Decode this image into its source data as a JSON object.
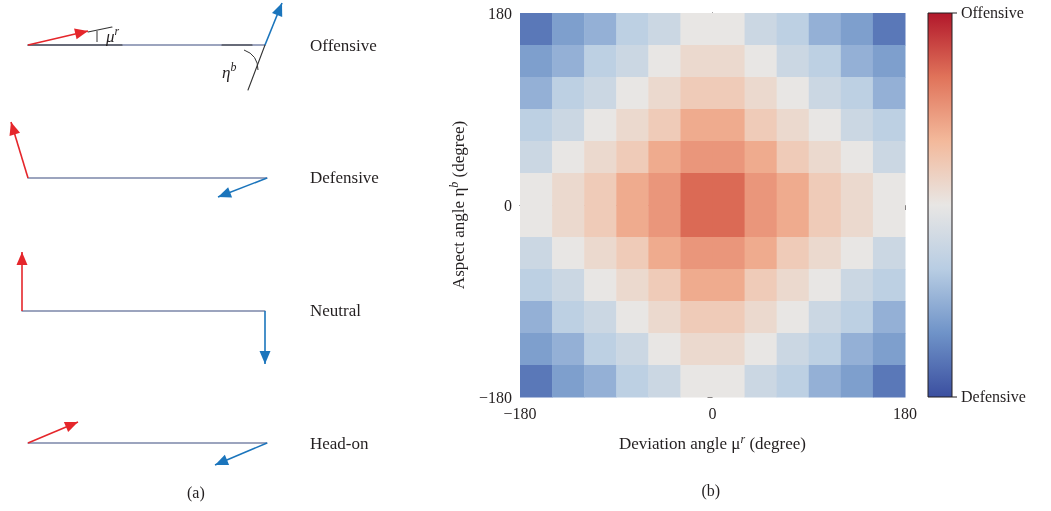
{
  "chart_data": [
    {
      "type": "other",
      "annotations": [
        "Offensive",
        "Defensive",
        "Neutral",
        "Head-on",
        "μ$^{r}$",
        "η$^{b}$",
        "(a)"
      ]
    },
    {
      "type": "heatmap",
      "xlabel": "Deviation angle μ$^{r}$ (degree)",
      "ylabel": "Aspect angle η$^{b}$ (degree)",
      "annotations": [
        "(b)"
      ],
      "x": [
        -165,
        -135,
        -105,
        -75,
        -45,
        -15,
        15,
        45,
        75,
        105,
        135,
        165
      ],
      "y": [
        165,
        135,
        105,
        75,
        45,
        15,
        -15,
        -45,
        -75,
        -105,
        -135,
        -165
      ],
      "xlim": [
        -180,
        180
      ],
      "xticks": [
        {
          "value": -180,
          "label": "−180"
        },
        0,
        180
      ],
      "ylim": [
        -180,
        180
      ],
      "yticks": [
        {
          "value": -180,
          "label": "−180"
        },
        0,
        180
      ],
      "clim": [
        0,
        1
      ],
      "cticks": [
        {
          "value": 0,
          "label": "Defensive"
        },
        {
          "value": 1,
          "label": "Offensive"
        }
      ],
      "cells": [
        [
          0.1,
          0.2,
          0.25,
          0.35,
          0.4,
          0.5,
          0.5,
          0.4,
          0.35,
          0.25,
          0.2,
          0.1
        ],
        [
          0.2,
          0.25,
          0.35,
          0.4,
          0.5,
          0.55,
          0.55,
          0.5,
          0.4,
          0.35,
          0.25,
          0.2
        ],
        [
          0.25,
          0.35,
          0.4,
          0.5,
          0.55,
          0.6,
          0.6,
          0.55,
          0.5,
          0.4,
          0.35,
          0.25
        ],
        [
          0.35,
          0.4,
          0.5,
          0.55,
          0.6,
          0.7,
          0.7,
          0.6,
          0.55,
          0.5,
          0.4,
          0.35
        ],
        [
          0.4,
          0.5,
          0.55,
          0.6,
          0.7,
          0.75,
          0.75,
          0.7,
          0.6,
          0.55,
          0.5,
          0.4
        ],
        [
          0.5,
          0.55,
          0.6,
          0.7,
          0.75,
          0.85,
          0.85,
          0.75,
          0.7,
          0.6,
          0.55,
          0.5
        ],
        [
          0.5,
          0.55,
          0.6,
          0.7,
          0.75,
          0.85,
          0.85,
          0.75,
          0.7,
          0.6,
          0.55,
          0.5
        ],
        [
          0.4,
          0.5,
          0.55,
          0.6,
          0.7,
          0.75,
          0.75,
          0.7,
          0.6,
          0.55,
          0.5,
          0.4
        ],
        [
          0.35,
          0.4,
          0.5,
          0.55,
          0.6,
          0.7,
          0.7,
          0.6,
          0.55,
          0.5,
          0.4,
          0.35
        ],
        [
          0.25,
          0.35,
          0.4,
          0.5,
          0.55,
          0.6,
          0.6,
          0.55,
          0.5,
          0.4,
          0.35,
          0.25
        ],
        [
          0.2,
          0.25,
          0.35,
          0.4,
          0.5,
          0.55,
          0.55,
          0.5,
          0.4,
          0.35,
          0.25,
          0.2
        ],
        [
          0.1,
          0.2,
          0.25,
          0.35,
          0.4,
          0.5,
          0.5,
          0.4,
          0.35,
          0.25,
          0.2,
          0.1
        ]
      ]
    }
  ]
}
